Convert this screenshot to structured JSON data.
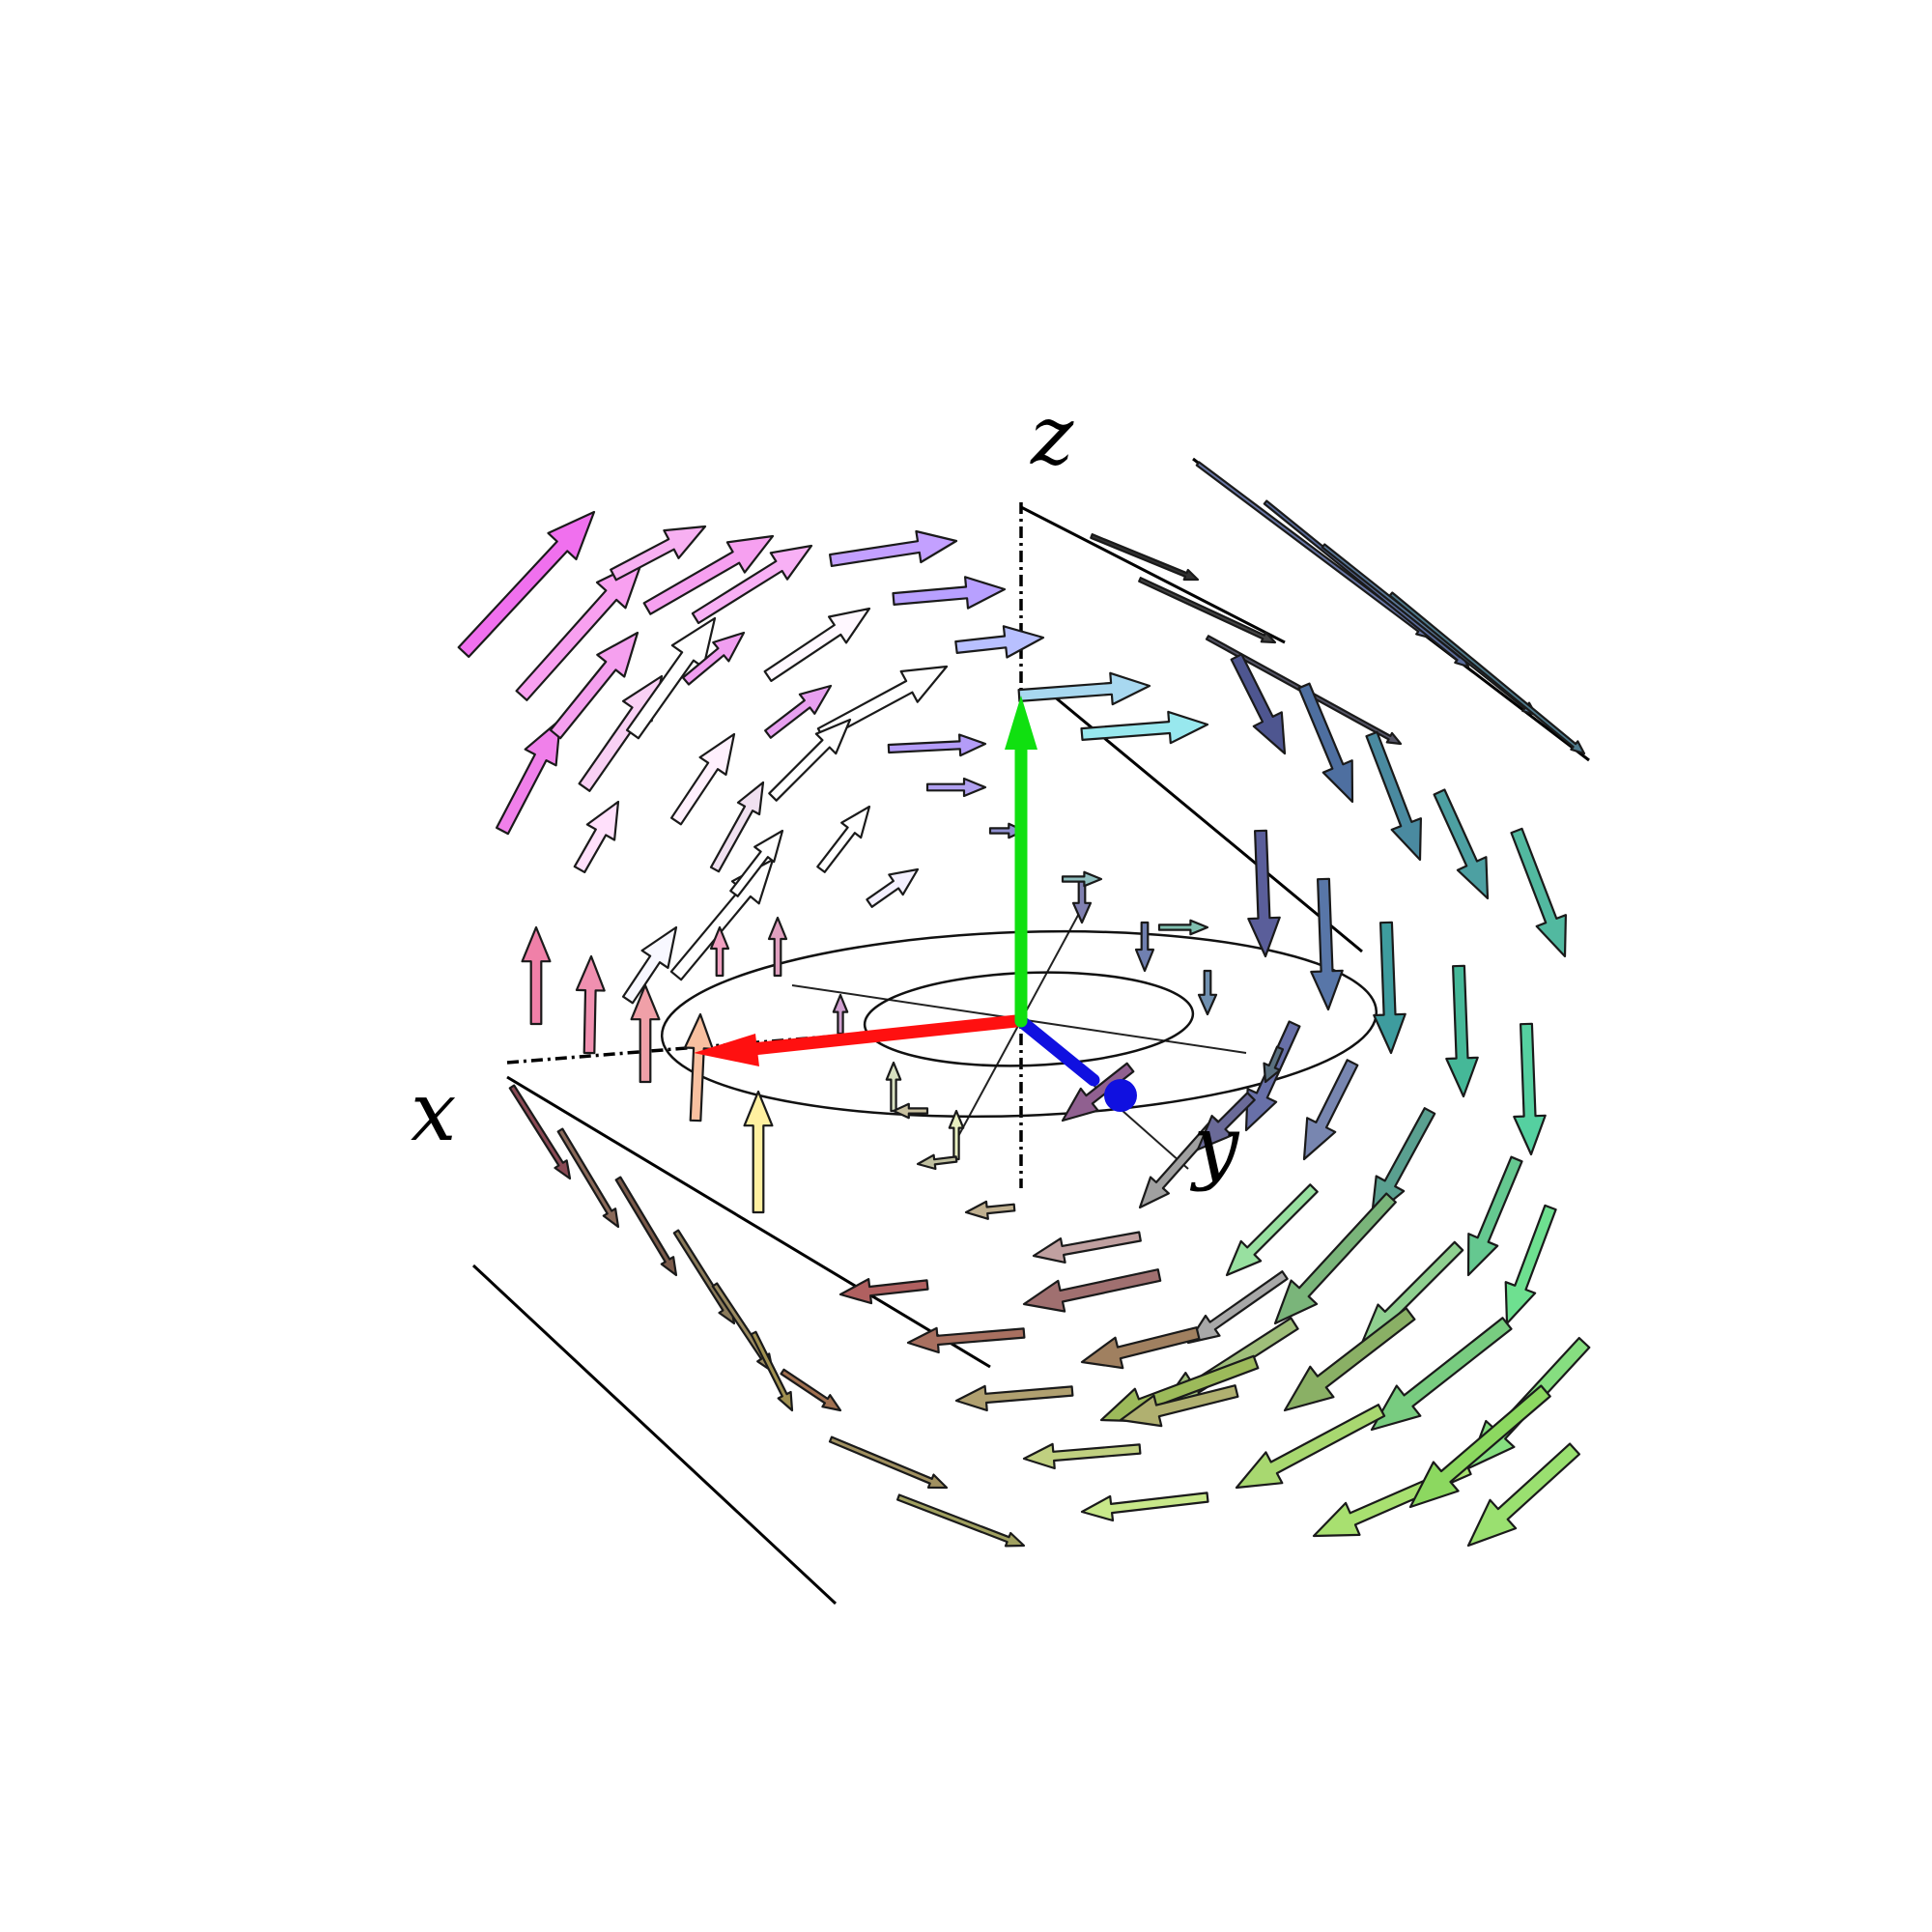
{
  "labels": {
    "x": "x",
    "y": "y",
    "z": "z"
  },
  "colors": {
    "x_axis": "#ff1010",
    "y_axis": "#1010e0",
    "z_axis": "#10e010",
    "background": "#ffffff"
  }
}
